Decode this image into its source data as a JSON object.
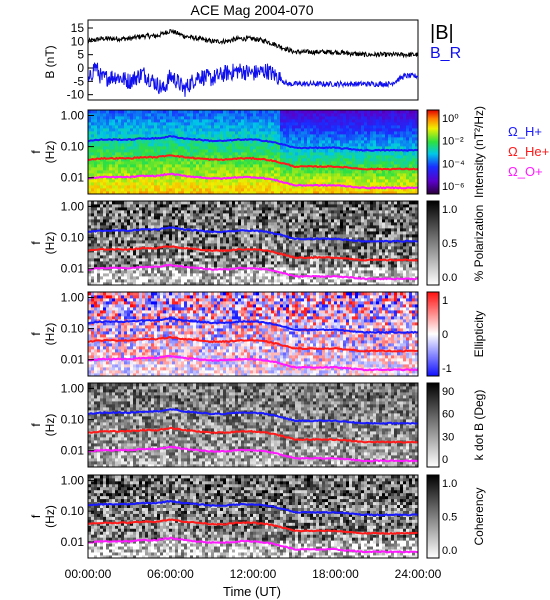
{
  "title": "ACE Mag 2004-070",
  "x_axis": {
    "label": "Time (UT)",
    "ticks": [
      "00:00:00",
      "06:00:00",
      "12:00:00",
      "18:00:00",
      "24:00:00"
    ]
  },
  "chart_data": [
    {
      "type": "line",
      "ylabel": "B (nT)",
      "ylim": [
        -12,
        18
      ],
      "yticks": [
        "15",
        "10",
        "5",
        "0",
        "-5",
        "-10"
      ],
      "legend": [
        {
          "text": "|B|",
          "color": "#000000"
        },
        {
          "text": "B_R",
          "color": "#1010ee"
        }
      ],
      "series": [
        {
          "name": "|B|",
          "color": "#000000",
          "x": [
            0,
            1,
            2,
            3,
            4,
            5,
            5.5,
            6,
            6.5,
            7,
            8,
            9,
            10,
            11,
            12,
            13,
            14,
            15,
            16,
            18,
            20,
            22,
            23,
            24
          ],
          "y": [
            10,
            11,
            11,
            11,
            12,
            12,
            13,
            14,
            13,
            12,
            11,
            10,
            10,
            11,
            11,
            10,
            8,
            6,
            6,
            6,
            5,
            5,
            5,
            5
          ]
        },
        {
          "name": "B_R",
          "color": "#1010ee",
          "x": [
            0,
            0.5,
            1,
            2,
            3,
            4,
            5,
            5.5,
            6,
            6.5,
            7,
            8,
            9,
            10,
            11,
            12,
            13,
            14,
            14.5,
            15,
            16,
            17,
            18,
            20,
            22,
            23,
            24
          ],
          "y": [
            -6,
            1,
            -4,
            -3,
            -5,
            -2,
            -6,
            -8,
            -3,
            -5,
            -8,
            -3,
            -4,
            -2,
            -1,
            -2,
            -1,
            -4,
            -6,
            -6,
            -6,
            -6,
            -6,
            -6,
            -6,
            -3,
            -3
          ]
        }
      ]
    },
    {
      "type": "heatmap",
      "ylabel": "f (Hz)",
      "yticks": [
        "1.00",
        "0.10",
        "0.01"
      ],
      "colorbar_label": "Intensity (nT²/Hz)",
      "colorbar_ticks": [
        "10⁰",
        "10⁻²",
        "10⁻⁴",
        "10⁻⁶"
      ],
      "overlay_legend": [
        {
          "text": "Ω_H+",
          "color": "#1a1aff"
        },
        {
          "text": "Ω_He+",
          "color": "#ff1a1a"
        },
        {
          "text": "Ω_O+",
          "color": "#ff1aff"
        }
      ]
    },
    {
      "type": "heatmap",
      "ylabel": "f (Hz)",
      "yticks": [
        "1.00",
        "0.10",
        "0.01"
      ],
      "colorbar_label": "% Polarization",
      "colorbar_ticks": [
        "1.0",
        "0.5",
        "0.0"
      ]
    },
    {
      "type": "heatmap",
      "ylabel": "f (Hz)",
      "yticks": [
        "1.00",
        "0.10",
        "0.01"
      ],
      "colorbar_label": "Ellipticity",
      "colorbar_ticks": [
        "1",
        "0",
        "-1"
      ]
    },
    {
      "type": "heatmap",
      "ylabel": "f (Hz)",
      "yticks": [
        "1.00",
        "0.10",
        "0.01"
      ],
      "colorbar_label": "k dot B (Deg)",
      "colorbar_ticks": [
        "90",
        "60",
        "30",
        "0"
      ]
    },
    {
      "type": "heatmap",
      "ylabel": "f (Hz)",
      "yticks": [
        "1.00",
        "0.10",
        "0.01"
      ],
      "colorbar_label": "Coherency",
      "colorbar_ticks": [
        "1.0",
        "0.5",
        "0.0"
      ]
    }
  ],
  "gyrofrequency_lines": {
    "x": [
      0,
      1,
      2,
      3,
      4,
      5,
      5.5,
      6,
      6.5,
      7,
      8,
      9,
      10,
      11,
      12,
      13,
      14,
      15,
      16,
      18,
      20,
      22,
      23,
      24
    ],
    "B": [
      10,
      11,
      11,
      11,
      12,
      12,
      13,
      14,
      13,
      12,
      11,
      10,
      10,
      11,
      11,
      10,
      8,
      6,
      6,
      6,
      5,
      5,
      5,
      5
    ],
    "H_plus": {
      "color": "#1a1aff",
      "scale": 0.01525
    },
    "He_plus": {
      "color": "#ff1a1a",
      "scale": 0.00381
    },
    "O_plus": {
      "color": "#ff1aff",
      "scale": 0.00095
    }
  }
}
